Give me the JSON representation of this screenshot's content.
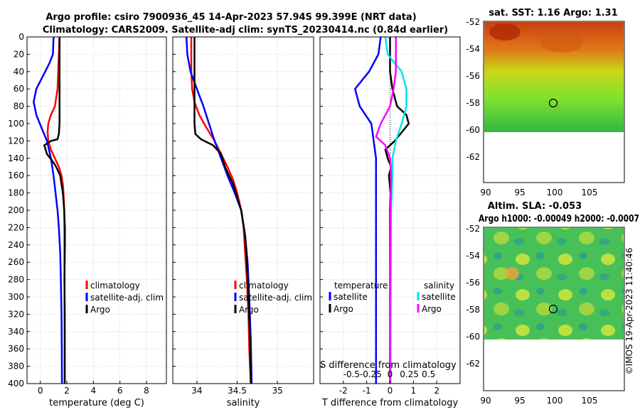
{
  "title_line1": "Argo profile: csiro 7900936_45 14-Apr-2023 57.94S 99.399E (NRT data)",
  "title_line2": "Climatology: CARS2009. Satellite-adj clim: synTS_20230414.nc (0.84d earlier)",
  "watermark": "©IMOS 19-Apr-2023 11:40:46",
  "colors": {
    "climatology": "#ff0000",
    "satellite": "#0000ff",
    "argo": "#000000",
    "sal_satellite": "#00e5ee",
    "sal_argo": "#ff00ff",
    "grid": "#c8c8c8"
  },
  "depth_axis": {
    "ylim": [
      0,
      400
    ],
    "ticks": [
      0,
      20,
      40,
      60,
      80,
      100,
      120,
      140,
      160,
      180,
      200,
      220,
      240,
      260,
      280,
      300,
      320,
      340,
      360,
      380,
      400
    ]
  },
  "chart_data": [
    {
      "type": "line",
      "id": "temperature",
      "xlabel": "temperature (deg C)",
      "xlim": [
        -1,
        9.5
      ],
      "xticks": [
        0,
        2,
        4,
        6,
        8
      ],
      "xtick_labels": [
        "0",
        "2",
        "4",
        "6",
        "8"
      ],
      "legend": [
        "climatology",
        "satellite-adj. clim",
        "Argo"
      ],
      "series": [
        {
          "name": "climatology",
          "color": "#ff0000",
          "x": [
            1.45,
            1.4,
            1.35,
            1.3,
            1.1,
            0.8,
            0.6,
            0.55,
            0.6,
            0.8,
            1.1,
            1.4,
            1.6,
            1.7,
            1.75,
            1.8,
            1.82,
            1.82,
            1.83,
            1.83,
            1.84,
            1.84,
            1.84
          ],
          "y": [
            0,
            20,
            40,
            60,
            80,
            90,
            100,
            110,
            120,
            130,
            140,
            150,
            160,
            170,
            180,
            200,
            220,
            240,
            280,
            320,
            360,
            380,
            400
          ]
        },
        {
          "name": "satellite-adj. clim",
          "color": "#0000ff",
          "x": [
            1.0,
            0.95,
            0.7,
            0.2,
            -0.3,
            -0.5,
            -0.3,
            0.1,
            0.5,
            0.8,
            1.0,
            1.15,
            1.3,
            1.4,
            1.5,
            1.55,
            1.6,
            1.62,
            1.63
          ],
          "y": [
            0,
            20,
            30,
            45,
            60,
            75,
            90,
            105,
            120,
            140,
            160,
            180,
            200,
            220,
            250,
            280,
            320,
            360,
            400
          ]
        },
        {
          "name": "Argo",
          "color": "#000000",
          "x": [
            1.45,
            1.45,
            1.45,
            1.45,
            1.45,
            1.45,
            1.4,
            1.3,
            0.8,
            0.3,
            0.5,
            1.0,
            1.2,
            1.5,
            1.6,
            1.7,
            1.8,
            1.85,
            1.85,
            1.82,
            1.84,
            1.84,
            1.84
          ],
          "y": [
            0,
            20,
            40,
            60,
            80,
            100,
            112,
            118,
            120,
            125,
            135,
            145,
            150,
            160,
            170,
            180,
            200,
            220,
            240,
            280,
            320,
            360,
            400
          ]
        }
      ]
    },
    {
      "type": "line",
      "id": "salinity",
      "xlabel": "salinity",
      "xlim": [
        33.7,
        35.45
      ],
      "xticks": [
        34,
        34.5,
        35
      ],
      "xtick_labels": [
        "34",
        "34.5",
        "35"
      ],
      "legend": [
        "climatology",
        "satellite-adj. clim",
        "Argo"
      ],
      "series": [
        {
          "name": "climatology",
          "color": "#ff0000",
          "x": [
            33.93,
            33.93,
            33.93,
            33.94,
            33.97,
            34.03,
            34.12,
            34.22,
            34.3,
            34.38,
            34.45,
            34.5,
            34.55,
            34.58,
            34.6,
            34.62,
            34.64,
            34.65,
            34.66,
            34.67
          ],
          "y": [
            0,
            20,
            40,
            60,
            75,
            90,
            105,
            120,
            135,
            150,
            165,
            180,
            200,
            220,
            250,
            280,
            320,
            360,
            380,
            400
          ]
        },
        {
          "name": "satellite-adj. clim",
          "color": "#0000ff",
          "x": [
            33.87,
            33.88,
            33.92,
            34.0,
            34.08,
            34.15,
            34.22,
            34.3,
            34.38,
            34.47,
            34.55,
            34.6,
            34.63,
            34.65,
            34.67,
            34.68
          ],
          "y": [
            0,
            20,
            40,
            60,
            80,
            100,
            120,
            140,
            160,
            180,
            200,
            230,
            260,
            300,
            350,
            400
          ]
        },
        {
          "name": "Argo",
          "color": "#000000",
          "x": [
            33.97,
            33.97,
            33.97,
            33.97,
            33.97,
            33.97,
            33.98,
            34.05,
            34.2,
            34.3,
            34.35,
            34.45,
            34.55,
            34.6,
            34.62,
            34.64,
            34.66,
            34.67
          ],
          "y": [
            0,
            20,
            40,
            60,
            80,
            100,
            112,
            118,
            125,
            135,
            150,
            170,
            200,
            230,
            260,
            300,
            350,
            400
          ]
        }
      ]
    },
    {
      "type": "line",
      "id": "difference",
      "xlabel": "T difference from climatology",
      "xlabel_top": "S difference from climatology",
      "xlim": [
        -3,
        3
      ],
      "xticks": [
        -2,
        -1,
        0,
        1,
        2
      ],
      "xtick_labels": [
        "-2",
        "-1",
        "0",
        "1",
        "2"
      ],
      "sticks_labels": [
        "-0.5",
        "-0.25",
        "0",
        "0.25",
        "0.5"
      ],
      "legend_headers": [
        "temperature",
        "salinity"
      ],
      "legend": [
        "satellite",
        "Argo",
        "satellite",
        "Argo"
      ],
      "series": [
        {
          "name": "satellite",
          "group": "temperature",
          "color": "#0000ff",
          "x": [
            -0.4,
            -0.5,
            -0.9,
            -1.5,
            -1.3,
            -0.8,
            -0.7,
            -0.6,
            -0.6,
            -0.6,
            -0.6,
            -0.6,
            -0.6
          ],
          "y": [
            0,
            20,
            40,
            60,
            80,
            100,
            120,
            140,
            160,
            200,
            260,
            320,
            400
          ]
        },
        {
          "name": "Argo",
          "group": "temperature",
          "color": "#000000",
          "x": [
            0,
            0,
            0,
            0.1,
            0.3,
            0.7,
            0.8,
            0.2,
            -0.2,
            -0.1,
            0.05,
            -0.05,
            0.02,
            0,
            0,
            0
          ],
          "y": [
            0,
            20,
            40,
            60,
            80,
            90,
            100,
            120,
            130,
            140,
            150,
            160,
            180,
            200,
            300,
            400
          ]
        },
        {
          "name": "satellite",
          "group": "salinity",
          "color": "#00e5ee",
          "x": [
            -0.2,
            -0.1,
            0.5,
            0.7,
            0.7,
            0.5,
            0.25,
            0.1,
            0.1,
            0.05,
            0.03,
            0.02
          ],
          "y": [
            0,
            20,
            40,
            60,
            80,
            100,
            120,
            140,
            160,
            200,
            300,
            400
          ]
        },
        {
          "name": "Argo",
          "group": "salinity",
          "color": "#ff00ff",
          "x": [
            0.25,
            0.25,
            0.25,
            0.15,
            0,
            -0.4,
            -0.6,
            -0.2,
            0,
            0.05,
            0.02,
            0,
            0
          ],
          "y": [
            0,
            20,
            40,
            60,
            80,
            100,
            115,
            125,
            140,
            160,
            200,
            300,
            400
          ]
        }
      ]
    }
  ],
  "maps": {
    "sst": {
      "title": "sat. SST: 1.16 Argo: 1.31",
      "xticks": [
        "90",
        "95",
        "100",
        "105"
      ],
      "yticks": [
        "-52",
        "-54",
        "-56",
        "-58",
        "-60",
        "-62"
      ]
    },
    "sla": {
      "title1": "Altim. SLA: -0.053",
      "title2": "Argo h1000: -0.00049 h2000: -0.0007",
      "xticks": [
        "90",
        "95",
        "100",
        "105"
      ],
      "yticks": [
        "-52",
        "-54",
        "-56",
        "-58",
        "-60",
        "-62"
      ]
    }
  }
}
